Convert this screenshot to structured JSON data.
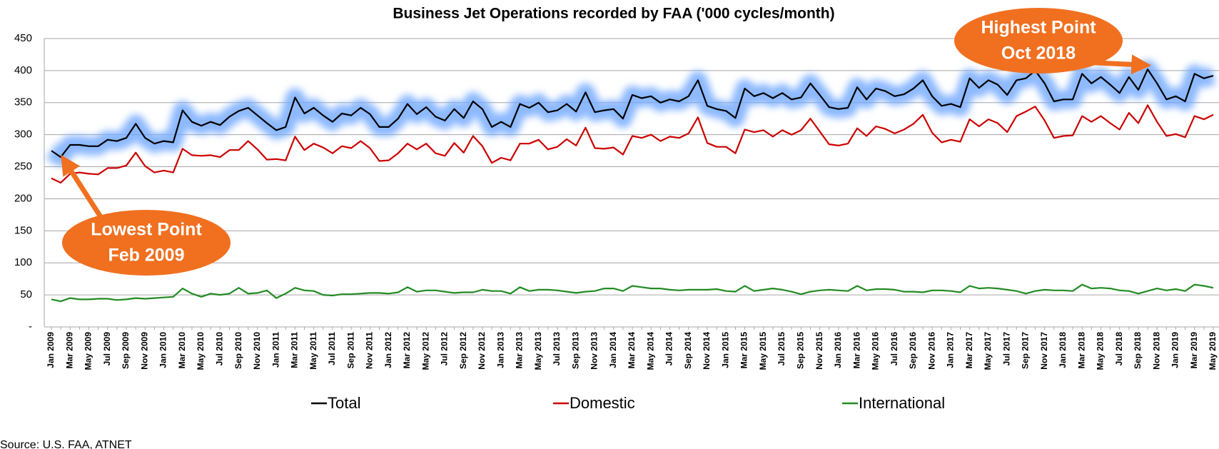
{
  "chart_data": {
    "type": "line",
    "title": "Business Jet Operations recorded by FAA ('000 cycles/month)",
    "source": "Source: U.S. FAA, ATNET",
    "categories": [
      "Jan 2009",
      null,
      "Mar 2009",
      null,
      "May 2009",
      null,
      "Jul 2009",
      null,
      "Sep 2009",
      null,
      "Nov 2009",
      null,
      "Jan 2010",
      null,
      "Mar 2010",
      null,
      "May 2010",
      null,
      "Jul 2010",
      null,
      "Sep 2010",
      null,
      "Nov 2010",
      null,
      "Jan 2011",
      null,
      "Mar 2011",
      null,
      "May 2011",
      null,
      "Jul 2011",
      null,
      "Sep 2011",
      null,
      "Nov 2011",
      null,
      "Jan 2012",
      null,
      "Mar 2012",
      null,
      "May 2012",
      null,
      "Jul 2012",
      null,
      "Sep 2012",
      null,
      "Nov 2012",
      null,
      "Jan 2013",
      null,
      "Mar 2013",
      null,
      "May 2013",
      null,
      "Jul 2013",
      null,
      "Sep 2013",
      null,
      "Nov 2013",
      null,
      "Jan 2014",
      null,
      "Mar 2014",
      null,
      "May 2014",
      null,
      "Jul 2014",
      null,
      "Sep 2014",
      null,
      "Nov 2014",
      null,
      "Jan 2015",
      null,
      "Mar 2015",
      null,
      "May 2015",
      null,
      "Jul 2015",
      null,
      "Sep 2015",
      null,
      "Nov 2015",
      null,
      "Jan 2016",
      null,
      "Mar 2016",
      null,
      "May 2016",
      null,
      "Jul 2016",
      null,
      "Sep 2016",
      null,
      "Nov 2016",
      null,
      "Jan 2017",
      null,
      "Mar 2017",
      null,
      "May 2017",
      null,
      "Jul 2017",
      null,
      "Sep 2017",
      null,
      "Nov 2017",
      null,
      "Jan 2018",
      null,
      "Mar 2018",
      null,
      "May 2018",
      null,
      "Jul 2018",
      null,
      "Sep 2018",
      null,
      "Nov 2018",
      null,
      "Jan 2019",
      null,
      "Mar 2019",
      null,
      "May 2019"
    ],
    "series": [
      {
        "name": "Total",
        "color": "#000000",
        "highlight": "#6fa8ff",
        "values": [
          275,
          265,
          284,
          284,
          282,
          282,
          292,
          290,
          295,
          317,
          295,
          286,
          290,
          288,
          338,
          320,
          314,
          320,
          315,
          328,
          337,
          342,
          330,
          318,
          307,
          312,
          358,
          333,
          342,
          330,
          320,
          333,
          330,
          342,
          332,
          312,
          312,
          325,
          348,
          332,
          343,
          328,
          322,
          340,
          326,
          352,
          340,
          312,
          320,
          312,
          348,
          342,
          350,
          335,
          338,
          348,
          336,
          366,
          335,
          338,
          340,
          325,
          362,
          357,
          360,
          350,
          355,
          352,
          360,
          385,
          345,
          340,
          337,
          326,
          372,
          360,
          365,
          357,
          365,
          355,
          358,
          380,
          362,
          343,
          340,
          342,
          374,
          355,
          372,
          368,
          360,
          363,
          372,
          385,
          360,
          345,
          348,
          343,
          388,
          373,
          385,
          378,
          362,
          385,
          388,
          400,
          380,
          352,
          355,
          355,
          395,
          380,
          390,
          378,
          365,
          390,
          370,
          402,
          380,
          355,
          360,
          352,
          395,
          388,
          392
        ]
      },
      {
        "name": "Domestic",
        "color": "#cc0000",
        "values": [
          232,
          225,
          239,
          241,
          239,
          238,
          248,
          248,
          252,
          272,
          251,
          241,
          244,
          241,
          278,
          268,
          267,
          268,
          265,
          276,
          276,
          290,
          277,
          261,
          262,
          260,
          297,
          276,
          286,
          280,
          271,
          282,
          279,
          290,
          279,
          259,
          260,
          271,
          286,
          277,
          286,
          271,
          267,
          287,
          272,
          298,
          282,
          256,
          264,
          260,
          286,
          286,
          292,
          277,
          281,
          293,
          283,
          311,
          279,
          278,
          280,
          269,
          298,
          295,
          300,
          290,
          297,
          295,
          302,
          327,
          287,
          281,
          281,
          271,
          308,
          304,
          307,
          297,
          307,
          300,
          307,
          325,
          305,
          285,
          283,
          286,
          310,
          298,
          313,
          309,
          302,
          308,
          317,
          331,
          303,
          288,
          292,
          289,
          324,
          313,
          324,
          318,
          304,
          329,
          336,
          344,
          322,
          295,
          298,
          299,
          329,
          320,
          329,
          318,
          308,
          334,
          318,
          346,
          320,
          298,
          301,
          296,
          329,
          324,
          331
        ]
      },
      {
        "name": "International",
        "color": "#228b22",
        "values": [
          43,
          40,
          45,
          43,
          43,
          44,
          44,
          42,
          43,
          45,
          44,
          45,
          46,
          47,
          60,
          52,
          47,
          52,
          50,
          52,
          61,
          52,
          53,
          57,
          45,
          52,
          61,
          57,
          56,
          50,
          49,
          51,
          51,
          52,
          53,
          53,
          52,
          54,
          62,
          55,
          57,
          57,
          55,
          53,
          54,
          54,
          58,
          56,
          56,
          52,
          62,
          56,
          58,
          58,
          57,
          55,
          53,
          55,
          56,
          60,
          60,
          56,
          64,
          62,
          60,
          60,
          58,
          57,
          58,
          58,
          58,
          59,
          56,
          55,
          64,
          56,
          58,
          60,
          58,
          55,
          51,
          55,
          57,
          58,
          57,
          56,
          64,
          57,
          59,
          59,
          58,
          55,
          55,
          54,
          57,
          57,
          56,
          54,
          64,
          60,
          61,
          60,
          58,
          56,
          52,
          56,
          58,
          57,
          57,
          56,
          66,
          60,
          61,
          60,
          57,
          56,
          52,
          56,
          60,
          57,
          59,
          56,
          66,
          64,
          61
        ]
      }
    ],
    "ylim": [
      0,
      450
    ],
    "yticks": [
      {
        "value": 0,
        "label": "-"
      },
      50,
      100,
      150,
      200,
      250,
      300,
      350,
      400,
      450
    ],
    "grid": true,
    "legend": "bottom",
    "annotations": [
      {
        "lines": [
          "Lowest Point",
          "Feb 2009"
        ],
        "series": 0,
        "index": 1,
        "color": "#f07020"
      },
      {
        "lines": [
          "Highest Point",
          "Oct 2018"
        ],
        "series": 0,
        "index": 117,
        "color": "#f07020"
      }
    ]
  }
}
